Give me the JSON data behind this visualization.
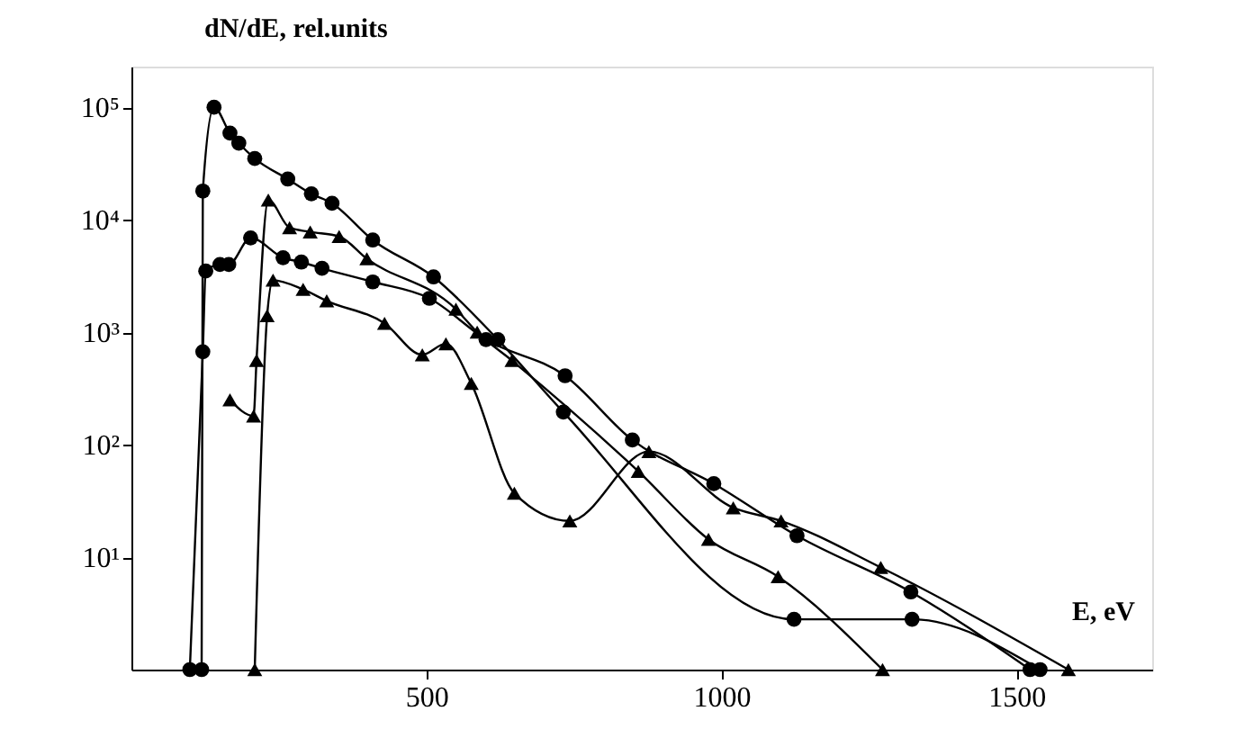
{
  "chart_data": {
    "type": "line",
    "xlabel": "E, eV",
    "ylabel": "dN/dE, rel.units",
    "log": "y",
    "grid": false,
    "line_style": "solid",
    "xlim": [
      0,
      1730
    ],
    "ylim": [
      1,
      230000
    ],
    "xticks": [
      500,
      1000,
      1500
    ],
    "yticks": [
      {
        "value": 10,
        "label": "10¹"
      },
      {
        "value": 100,
        "label": "10²"
      },
      {
        "value": 1000,
        "label": "10³"
      },
      {
        "value": 10000,
        "label": "10⁴"
      },
      {
        "value": 100000,
        "label": "10⁵"
      }
    ],
    "series": [
      {
        "color": "#000000",
        "marker": "circle",
        "x": [
          119,
          121,
          140,
          167,
          182,
          209,
          265,
          305,
          340,
          409,
          512,
          621,
          732,
          1123,
          1323,
          1540
        ],
        "values": [
          1,
          18000,
          100000,
          59000,
          48000,
          35000,
          23000,
          17000,
          14000,
          6600,
          3100,
          860,
          195,
          2.8,
          2.8,
          1
        ]
      },
      {
        "color": "#000000",
        "marker": "circle",
        "x": [
          99,
          121,
          126,
          150,
          165,
          202,
          257,
          288,
          323,
          409,
          505,
          601,
          735,
          849,
          987,
          1128,
          1321,
          1523
        ],
        "values": [
          1,
          670,
          3500,
          4000,
          4000,
          6900,
          4600,
          4200,
          3700,
          2800,
          2000,
          860,
          410,
          110,
          45,
          15.5,
          4.9,
          1
        ]
      },
      {
        "color": "#000000",
        "marker": "triangle",
        "x": [
          167,
          207,
          212,
          232,
          268,
          303,
          352,
          399,
          550,
          586,
          645,
          859,
          978,
          1096,
          1273
        ],
        "values": [
          250,
          180,
          560,
          15000,
          8500,
          7800,
          7100,
          4500,
          1600,
          1000,
          560,
          58,
          14.4,
          6.7,
          1
        ]
      },
      {
        "color": "#000000",
        "marker": "triangle",
        "x": [
          209,
          230,
          240,
          291,
          331,
          429,
          493,
          533,
          576,
          649,
          743,
          877,
          1020,
          1101,
          1270,
          1588
        ],
        "values": [
          1,
          1400,
          2900,
          2400,
          1900,
          1200,
          630,
          790,
          350,
          37,
          21,
          87,
          27.5,
          21,
          8.1,
          1
        ]
      }
    ]
  }
}
